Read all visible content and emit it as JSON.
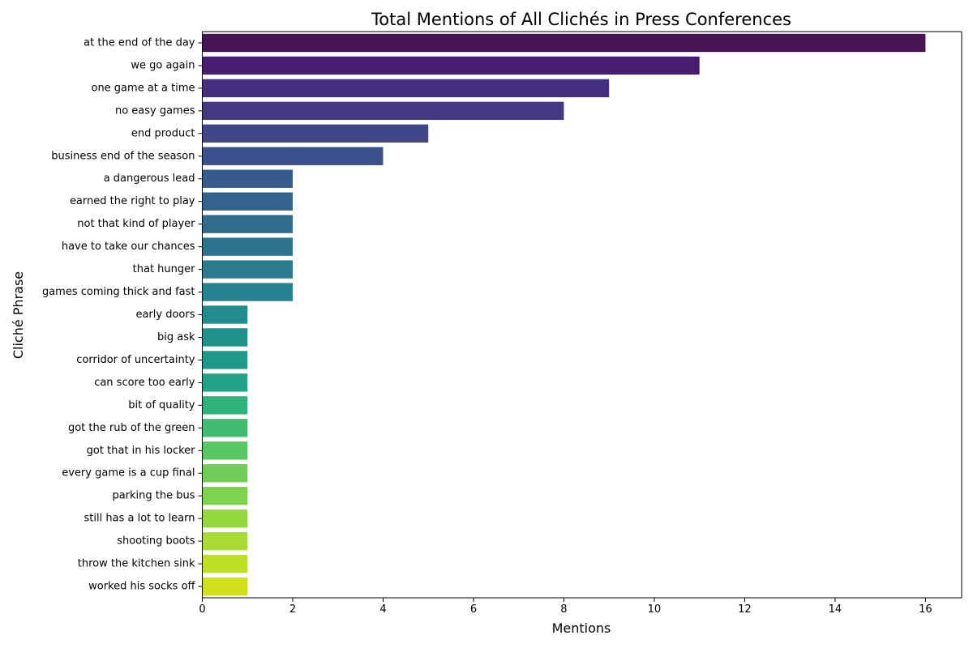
{
  "chart_data": {
    "type": "bar",
    "orientation": "horizontal",
    "title": "Total Mentions of All Clichés in Press Conferences",
    "xlabel": "Mentions",
    "ylabel": "Cliché Phrase",
    "xlim": [
      0,
      16.8
    ],
    "x_ticks": [
      "0",
      "2",
      "4",
      "6",
      "8",
      "10",
      "12",
      "14",
      "16"
    ],
    "grid": false,
    "legend": "none",
    "colormap": "viridis",
    "categories": [
      "at the end of the day",
      "we go again",
      "one game at a time",
      "no easy games",
      "end product",
      "business end of the season",
      "a dangerous lead",
      "earned the right to play",
      "not that kind of player",
      "have to take our chances",
      "that hunger",
      "games coming thick and fast",
      "early doors",
      "big ask",
      "corridor of uncertainty",
      "can score too early",
      "bit of quality",
      "got the rub of the green",
      "got that in his locker",
      "every game is a cup final",
      "parking the bus",
      "still has a lot to learn",
      "shooting boots",
      "throw the kitchen sink",
      "worked his socks off"
    ],
    "values": [
      16,
      11,
      9,
      8,
      5,
      4,
      2,
      2,
      2,
      2,
      2,
      2,
      1,
      1,
      1,
      1,
      1,
      1,
      1,
      1,
      1,
      1,
      1,
      1,
      1
    ],
    "colors": [
      "#471554",
      "#481c6e",
      "#462e7f",
      "#453781",
      "#3f4788",
      "#3b518b",
      "#375a8c",
      "#33638d",
      "#2f6c8e",
      "#2c738e",
      "#297b8e",
      "#26838f",
      "#228b8d",
      "#1f938b",
      "#1f9a8a",
      "#22a385",
      "#2eb37c",
      "#41bd72",
      "#58c765",
      "#6ece58",
      "#7ed34e",
      "#94d840",
      "#a8db34",
      "#bddf26",
      "#d0e11c"
    ]
  }
}
